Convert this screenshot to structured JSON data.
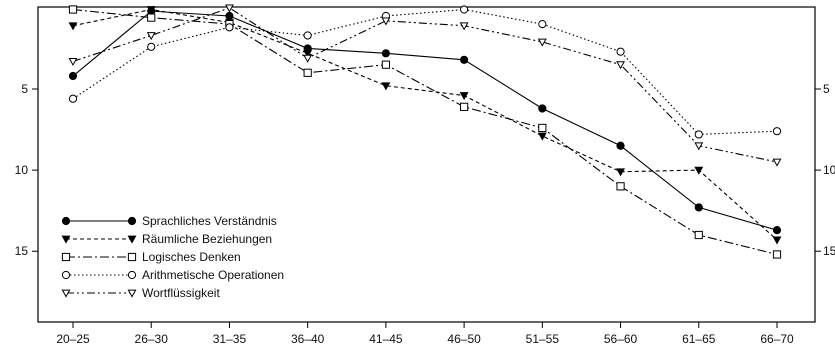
{
  "chart_data": {
    "type": "line",
    "categories": [
      "20–25",
      "26–30",
      "31–35",
      "36–40",
      "41–45",
      "46–50",
      "51–55",
      "56–60",
      "61–65",
      "66–70"
    ],
    "ylim": [
      19.5,
      0
    ],
    "y_ticks_left": [
      "5",
      "10",
      "15"
    ],
    "y_ticks_right": [
      "5",
      "10",
      "15"
    ],
    "legend_position": "bottom-left",
    "series": [
      {
        "name": "Sprachliches Verständnis",
        "marker": "circle-filled",
        "dash": "solid",
        "values": [
          4.2,
          0.2,
          0.5,
          2.5,
          2.8,
          3.2,
          6.2,
          8.5,
          12.3,
          13.7
        ]
      },
      {
        "name": "Räumliche Beziehungen",
        "marker": "triangle-down-filled",
        "dash": "short-dash",
        "values": [
          1.1,
          0.1,
          0.9,
          2.8,
          4.8,
          5.4,
          7.9,
          10.1,
          10.0,
          14.3
        ]
      },
      {
        "name": "Logisches Denken",
        "marker": "square-open",
        "dash": "dash-dot",
        "values": [
          0.1,
          0.6,
          1.0,
          4.0,
          3.5,
          6.1,
          7.4,
          11.0,
          14.0,
          15.2
        ]
      },
      {
        "name": "Arithmetische Operationen",
        "marker": "circle-open",
        "dash": "dotted",
        "values": [
          5.6,
          2.4,
          1.2,
          1.7,
          0.5,
          0.1,
          1.0,
          2.7,
          7.8,
          7.6
        ]
      },
      {
        "name": "Wortflüssigkeit",
        "marker": "triangle-down-open",
        "dash": "dash-dot-dot",
        "values": [
          3.3,
          1.7,
          0.0,
          3.1,
          0.8,
          1.1,
          2.1,
          3.5,
          8.5,
          9.5
        ]
      }
    ]
  }
}
